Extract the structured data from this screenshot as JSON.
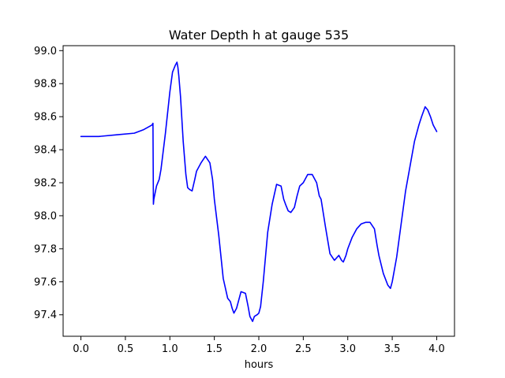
{
  "chart_data": {
    "type": "line",
    "title": "Water Depth h at gauge 535",
    "xlabel": "hours",
    "ylabel": "",
    "xlim": [
      -0.2,
      4.2
    ],
    "ylim": [
      97.27,
      99.03
    ],
    "x_ticks": [
      0.0,
      0.5,
      1.0,
      1.5,
      2.0,
      2.5,
      3.0,
      3.5,
      4.0
    ],
    "x_tick_labels": [
      "0.0",
      "0.5",
      "1.0",
      "1.5",
      "2.0",
      "2.5",
      "3.0",
      "3.5",
      "4.0"
    ],
    "y_ticks": [
      97.4,
      97.6,
      97.8,
      98.0,
      98.2,
      98.4,
      98.6,
      98.8,
      99.0
    ],
    "y_tick_labels": [
      "97.4",
      "97.6",
      "97.8",
      "98.0",
      "98.2",
      "98.4",
      "98.6",
      "98.8",
      "99.0"
    ],
    "grid": false,
    "series": [
      {
        "color": "#0000ff",
        "x": [
          0.0,
          0.2,
          0.4,
          0.6,
          0.7,
          0.8,
          0.81,
          0.815,
          0.82,
          0.85,
          0.88,
          0.9,
          0.95,
          1.0,
          1.03,
          1.06,
          1.08,
          1.09,
          1.1,
          1.12,
          1.15,
          1.18,
          1.2,
          1.22,
          1.25,
          1.28,
          1.3,
          1.35,
          1.4,
          1.45,
          1.48,
          1.5,
          1.55,
          1.6,
          1.65,
          1.68,
          1.7,
          1.72,
          1.75,
          1.8,
          1.85,
          1.88,
          1.9,
          1.93,
          1.95,
          1.98,
          2.0,
          2.02,
          2.05,
          2.08,
          2.1,
          2.15,
          2.2,
          2.25,
          2.28,
          2.3,
          2.33,
          2.36,
          2.4,
          2.43,
          2.46,
          2.5,
          2.55,
          2.6,
          2.65,
          2.68,
          2.7,
          2.75,
          2.8,
          2.85,
          2.9,
          2.93,
          2.95,
          2.98,
          3.0,
          3.05,
          3.1,
          3.15,
          3.2,
          3.25,
          3.3,
          3.33,
          3.35,
          3.4,
          3.45,
          3.48,
          3.5,
          3.55,
          3.6,
          3.65,
          3.7,
          3.75,
          3.8,
          3.83,
          3.85,
          3.87,
          3.9,
          3.93,
          3.96,
          4.0
        ],
        "y": [
          98.48,
          98.48,
          98.49,
          98.5,
          98.52,
          98.55,
          98.56,
          98.07,
          98.1,
          98.18,
          98.22,
          98.28,
          98.5,
          98.75,
          98.87,
          98.91,
          98.93,
          98.9,
          98.85,
          98.72,
          98.45,
          98.25,
          98.17,
          98.16,
          98.15,
          98.22,
          98.27,
          98.32,
          98.36,
          98.32,
          98.22,
          98.1,
          97.88,
          97.62,
          97.5,
          97.48,
          97.44,
          97.41,
          97.44,
          97.54,
          97.53,
          97.45,
          97.39,
          97.36,
          97.39,
          97.4,
          97.41,
          97.45,
          97.6,
          97.78,
          97.9,
          98.07,
          98.19,
          98.18,
          98.1,
          98.07,
          98.03,
          98.02,
          98.05,
          98.12,
          98.18,
          98.2,
          98.25,
          98.25,
          98.2,
          98.12,
          98.1,
          97.93,
          97.77,
          97.73,
          97.76,
          97.73,
          97.72,
          97.76,
          97.8,
          97.87,
          97.92,
          97.95,
          97.96,
          97.96,
          97.92,
          97.82,
          97.76,
          97.65,
          97.58,
          97.56,
          97.6,
          97.75,
          97.95,
          98.15,
          98.3,
          98.45,
          98.55,
          98.6,
          98.63,
          98.66,
          98.64,
          98.6,
          98.55,
          98.51
        ]
      }
    ]
  }
}
